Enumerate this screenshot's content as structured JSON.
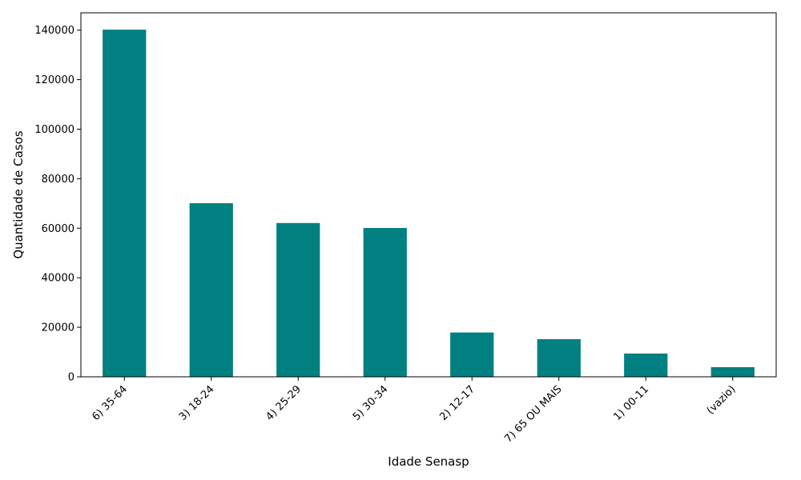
{
  "chart_data": {
    "type": "bar",
    "categories": [
      "6) 35-64",
      "3) 18-24",
      "4) 25-29",
      "5) 30-34",
      "2) 12-17",
      "7) 65 OU MAIS",
      "1) 00-11",
      "(vazio)"
    ],
    "values": [
      140200,
      70100,
      62100,
      60100,
      17900,
      15200,
      9400,
      3900
    ],
    "xlabel": "Idade Senasp",
    "ylabel": "Quantidade de Casos",
    "yticks": [
      0,
      20000,
      40000,
      60000,
      80000,
      100000,
      120000,
      140000
    ],
    "ylim": [
      0,
      147000
    ],
    "bar_color": "#008080",
    "grid": false,
    "legend": false
  }
}
